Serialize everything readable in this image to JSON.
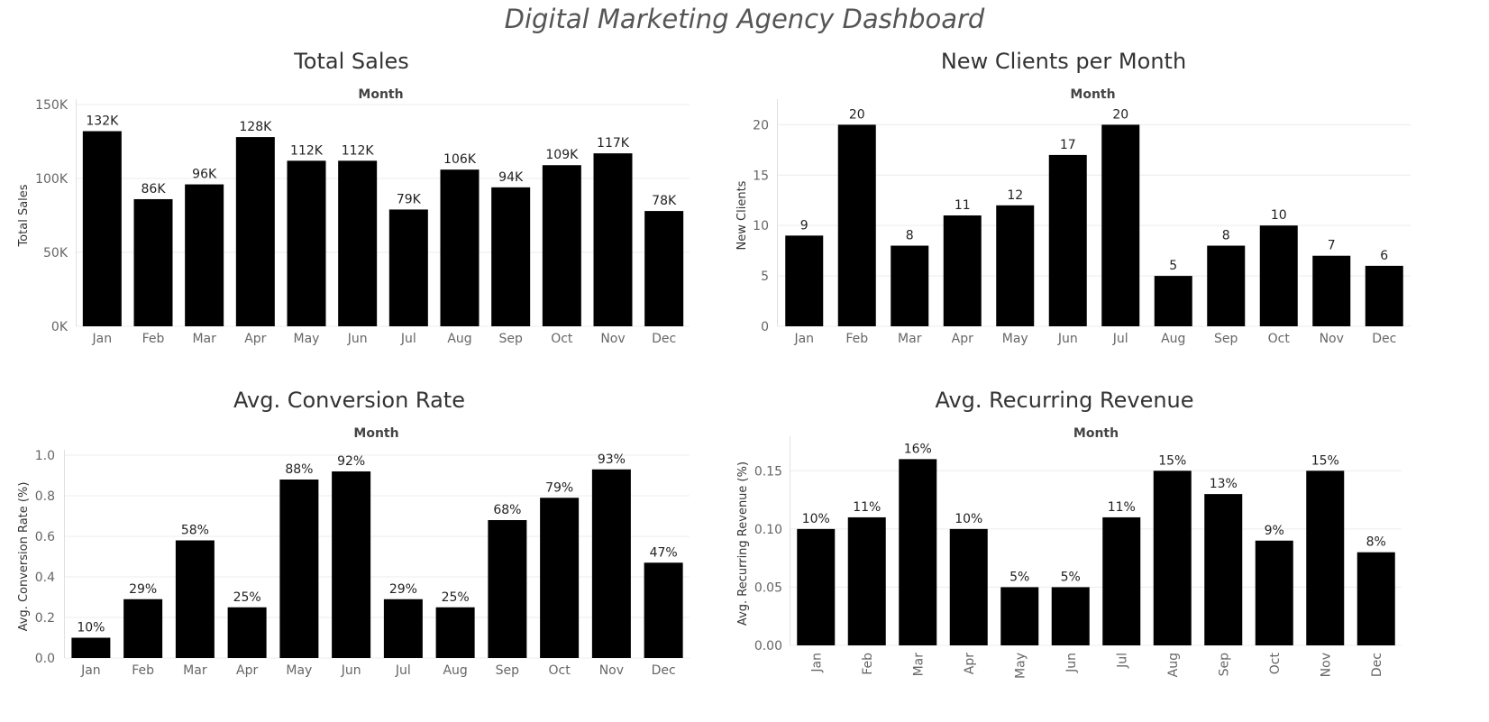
{
  "dashboard": {
    "title": "Digital Marketing Agency Dashboard"
  },
  "chart_data": [
    {
      "type": "bar",
      "title": "Total Sales",
      "xlabel": "Month",
      "ylabel": "Total Sales",
      "categories": [
        "Jan",
        "Feb",
        "Mar",
        "Apr",
        "May",
        "Jun",
        "Jul",
        "Aug",
        "Sep",
        "Oct",
        "Nov",
        "Dec"
      ],
      "values": [
        132000,
        86000,
        96000,
        128000,
        112000,
        112000,
        79000,
        106000,
        94000,
        109000,
        117000,
        78000
      ],
      "value_labels": [
        "132K",
        "86K",
        "96K",
        "128K",
        "112K",
        "112K",
        "79K",
        "106K",
        "94K",
        "109K",
        "117K",
        "78K"
      ],
      "ylim": [
        0,
        150000
      ],
      "yticks": [
        0,
        50000,
        100000,
        150000
      ],
      "ytick_labels": [
        "0K",
        "50K",
        "100K",
        "150K"
      ],
      "grid": true,
      "bar_color": "#000000"
    },
    {
      "type": "bar",
      "title": "New Clients per Month",
      "xlabel": "Month",
      "ylabel": "New Clients",
      "categories": [
        "Jan",
        "Feb",
        "Mar",
        "Apr",
        "May",
        "Jun",
        "Jul",
        "Aug",
        "Sep",
        "Oct",
        "Nov",
        "Dec"
      ],
      "values": [
        9,
        20,
        8,
        11,
        12,
        17,
        20,
        5,
        8,
        10,
        7,
        6
      ],
      "value_labels": [
        "9",
        "20",
        "8",
        "11",
        "12",
        "17",
        "20",
        "5",
        "8",
        "10",
        "7",
        "6"
      ],
      "ylim": [
        0,
        22
      ],
      "yticks": [
        0,
        5,
        10,
        15,
        20
      ],
      "ytick_labels": [
        "0",
        "5",
        "10",
        "15",
        "20"
      ],
      "grid": true,
      "bar_color": "#000000"
    },
    {
      "type": "bar",
      "title": "Avg. Conversion Rate",
      "xlabel": "Month",
      "ylabel": "Avg. Conversion Rate (%)",
      "categories": [
        "Jan",
        "Feb",
        "Mar",
        "Apr",
        "May",
        "Jun",
        "Jul",
        "Aug",
        "Sep",
        "Oct",
        "Nov",
        "Dec"
      ],
      "values": [
        0.1,
        0.29,
        0.58,
        0.25,
        0.88,
        0.92,
        0.29,
        0.25,
        0.68,
        0.79,
        0.93,
        0.47
      ],
      "value_labels": [
        "10%",
        "29%",
        "58%",
        "25%",
        "88%",
        "92%",
        "29%",
        "25%",
        "68%",
        "79%",
        "93%",
        "47%"
      ],
      "ylim": [
        0,
        1.0
      ],
      "yticks": [
        0.0,
        0.2,
        0.4,
        0.6,
        0.8,
        1.0
      ],
      "ytick_labels": [
        "0.0",
        "0.2",
        "0.4",
        "0.6",
        "0.8",
        "1.0"
      ],
      "grid": true,
      "bar_color": "#000000"
    },
    {
      "type": "bar",
      "title": "Avg. Recurring Revenue",
      "xlabel": "Month",
      "ylabel": "Avg. Recurring Revenue (%)",
      "categories": [
        "Jan",
        "Feb",
        "Mar",
        "Apr",
        "May",
        "Jun",
        "Jul",
        "Aug",
        "Sep",
        "Oct",
        "Nov",
        "Dec"
      ],
      "values": [
        0.1,
        0.11,
        0.16,
        0.1,
        0.05,
        0.05,
        0.11,
        0.15,
        0.13,
        0.09,
        0.15,
        0.08
      ],
      "value_labels": [
        "10%",
        "11%",
        "16%",
        "10%",
        "5%",
        "5%",
        "11%",
        "15%",
        "13%",
        "9%",
        "15%",
        "8%"
      ],
      "ylim": [
        0,
        0.175
      ],
      "yticks": [
        0.0,
        0.05,
        0.1,
        0.15
      ],
      "ytick_labels": [
        "0.00",
        "0.05",
        "0.10",
        "0.15"
      ],
      "xtick_rotation": "vertical",
      "grid": true,
      "bar_color": "#000000"
    }
  ]
}
